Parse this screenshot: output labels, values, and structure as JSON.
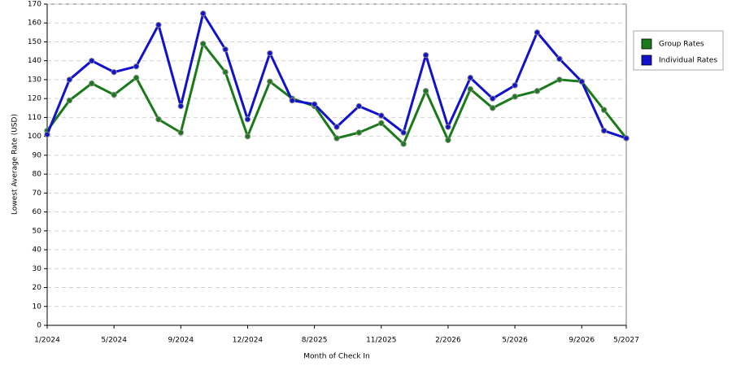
{
  "chart_data": {
    "type": "line",
    "x_label": "Month of Check In",
    "y_label": "Lowest Average Rate (USD)",
    "categories": [
      "1/2024",
      null,
      null,
      "5/2024",
      null,
      null,
      "9/2024",
      null,
      null,
      "12/2024",
      null,
      null,
      "8/2025",
      null,
      null,
      "11/2025",
      null,
      null,
      "2/2026",
      null,
      null,
      "5/2026",
      null,
      null,
      "9/2026",
      null,
      "5/2027"
    ],
    "series": [
      {
        "name": "Group Rates",
        "color": "#1a7a1a",
        "values": [
          103,
          119,
          128,
          122,
          131,
          109,
          102,
          149,
          134,
          100,
          129,
          120,
          116,
          99,
          102,
          107,
          96,
          124,
          98,
          125,
          115,
          121,
          124,
          130,
          129,
          114,
          99
        ]
      },
      {
        "name": "Individual Rates",
        "color": "#1212cc",
        "values": [
          101,
          130,
          140,
          134,
          137,
          159,
          116,
          165,
          146,
          109,
          144,
          119,
          117,
          105,
          116,
          111,
          102,
          143,
          105,
          131,
          120,
          127,
          155,
          141,
          129,
          103,
          99
        ]
      }
    ],
    "ylim": [
      0,
      170
    ],
    "yticks": [
      0,
      10,
      20,
      30,
      40,
      50,
      60,
      70,
      80,
      90,
      100,
      110,
      120,
      130,
      140,
      150,
      160,
      170
    ],
    "grid": true,
    "legend": "right"
  }
}
